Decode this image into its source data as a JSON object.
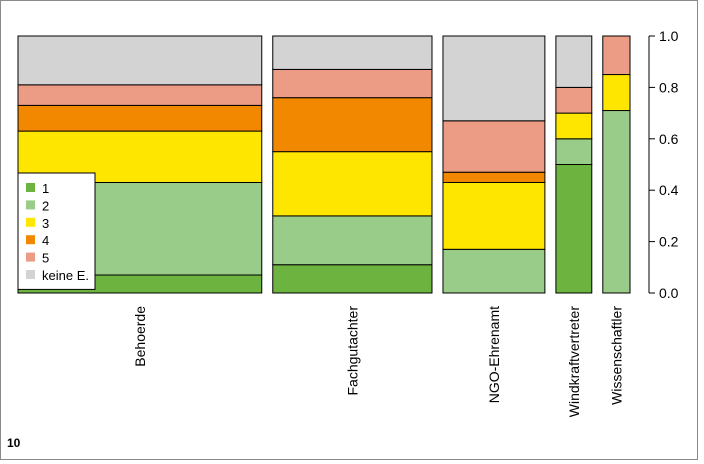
{
  "figure_number": "10",
  "chart_data": {
    "type": "bar",
    "subtype": "stacked-proportion (mosaic)",
    "categories": [
      "Behoerde",
      "Fachgutachter",
      "NGO-Ehrenamt",
      "Windkraftvertreter",
      "Wissenschaftler"
    ],
    "category_share": [
      0.421,
      0.275,
      0.176,
      0.062,
      0.047
    ],
    "series": [
      {
        "name": "1",
        "color": "#6db33f",
        "values": [
          0.07,
          0.11,
          0.0,
          0.5,
          0.0
        ]
      },
      {
        "name": "2",
        "color": "#99cc88",
        "values": [
          0.36,
          0.19,
          0.17,
          0.1,
          0.71
        ]
      },
      {
        "name": "3",
        "color": "#ffe600",
        "values": [
          0.2,
          0.25,
          0.26,
          0.1,
          0.14
        ]
      },
      {
        "name": "4",
        "color": "#f28800",
        "values": [
          0.1,
          0.21,
          0.04,
          0.0,
          0.0
        ]
      },
      {
        "name": "5",
        "color": "#ec9c85",
        "values": [
          0.08,
          0.11,
          0.2,
          0.1,
          0.15
        ]
      },
      {
        "name": "keine E.",
        "color": "#d3d3d3",
        "values": [
          0.19,
          0.13,
          0.33,
          0.2,
          0.0
        ]
      }
    ],
    "yticks": [
      "0.0",
      "0.2",
      "0.4",
      "0.6",
      "0.8",
      "1.0"
    ],
    "ylim": [
      0,
      1
    ],
    "y_axis_side": "right",
    "legend_position": "left, lower half",
    "grid": false,
    "xlabel": "",
    "ylabel": "",
    "title": ""
  }
}
